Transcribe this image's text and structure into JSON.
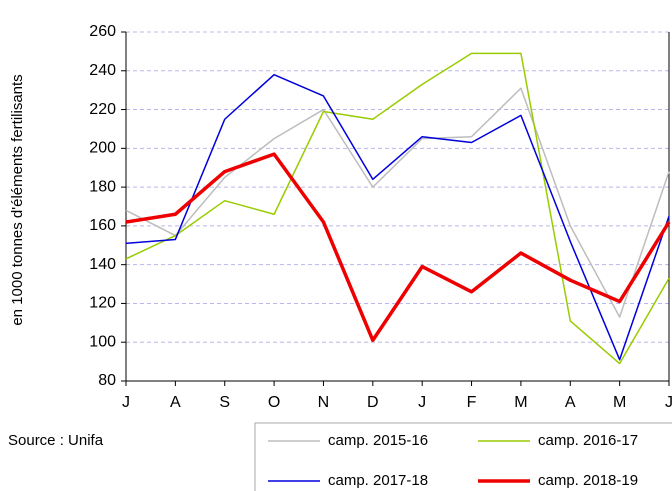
{
  "chart_data": {
    "type": "line",
    "y_label": "en 1000 tonnes d'éléments fertilisants",
    "source": "Source : Unifa",
    "categories": [
      "J",
      "A",
      "S",
      "O",
      "N",
      "D",
      "J",
      "F",
      "M",
      "A",
      "M",
      "J"
    ],
    "series": [
      {
        "name": "camp. 2015-16",
        "color": "#bdbdbd",
        "line_width": 1.5,
        "values": [
          168,
          155,
          185,
          205,
          220,
          180,
          205,
          206,
          231,
          160,
          113,
          188
        ]
      },
      {
        "name": "camp. 2016-17",
        "color": "#99cc00",
        "line_width": 1.5,
        "values": [
          143,
          155,
          173,
          166,
          219,
          215,
          233,
          249,
          249,
          111,
          89,
          133
        ]
      },
      {
        "name": "camp. 2017-18",
        "color": "#0000dd",
        "line_width": 1.5,
        "values": [
          151,
          153,
          215,
          238,
          227,
          184,
          206,
          203,
          217,
          152,
          91,
          165
        ]
      },
      {
        "name": "camp. 2018-19",
        "color": "#ee0000",
        "line_width": 3.5,
        "values": [
          162,
          166,
          188,
          197,
          162,
          101,
          139,
          126,
          146,
          132,
          121,
          162
        ]
      }
    ],
    "ylim": [
      80,
      260
    ],
    "yticks": [
      80,
      100,
      120,
      140,
      160,
      180,
      200,
      220,
      240,
      260
    ],
    "grid": true
  }
}
